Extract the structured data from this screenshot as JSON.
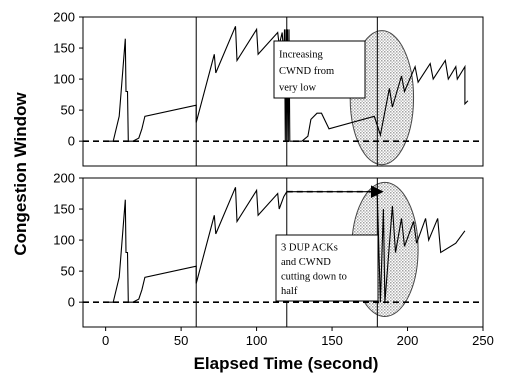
{
  "chart_data": {
    "type": "line",
    "xlabel": "Elapsed Time (second)",
    "ylabel": "Congestion Window",
    "xlim": [
      -15,
      250
    ],
    "xticks": [
      "0",
      "50",
      "100",
      "150",
      "200",
      "250"
    ],
    "xtick_values": [
      0,
      50,
      100,
      150,
      200,
      250
    ],
    "vertical_markers": [
      60,
      120,
      180
    ],
    "grid": false,
    "legend": "none",
    "panels": [
      {
        "ylim": [
          -40,
          200
        ],
        "yticks": [
          "0",
          "50",
          "100",
          "150",
          "200"
        ],
        "ytick_values": [
          0,
          50,
          100,
          150,
          200
        ],
        "baseline": 0,
        "series": [
          {
            "x": [
              0,
              5,
              9,
              13,
              13.5,
              14.5,
              15,
              17,
              17.5,
              18,
              22,
              24,
              26,
              60,
              60,
              72,
              73,
              86,
              87,
              100,
              101,
              114,
              115,
              117,
              118,
              118.5,
              119,
              119.5,
              120,
              120.5,
              121,
              121.5,
              122,
              130,
              134,
              136,
              140,
              143,
              148,
              178,
              182,
              188,
              190,
              196,
              198,
              205,
              207,
              215,
              217,
              225,
              227,
              232,
              233,
              238,
              238,
              240
            ],
            "y": [
              0,
              0,
              40,
              165,
              80,
              80,
              0,
              0,
              0,
              0,
              5,
              20,
              40,
              58,
              30,
              140,
              110,
              185,
              130,
              180,
              140,
              175,
              155,
              175,
              135,
              180,
              0,
              180,
              0,
              180,
              0,
              180,
              0,
              0,
              8,
              35,
              45,
              45,
              20,
              40,
              10,
              85,
              55,
              105,
              80,
              120,
              95,
              125,
              100,
              130,
              100,
              120,
              100,
              120,
              60,
              65
            ]
          }
        ],
        "annotations": [
          {
            "text": [
              "Increasing",
              "CWND from",
              "very low"
            ]
          }
        ],
        "ellipse": {
          "cx": 183,
          "cy": 70,
          "rx": 21,
          "ry": 108
        }
      },
      {
        "ylim": [
          -40,
          200
        ],
        "yticks": [
          "0",
          "50",
          "100",
          "150",
          "200"
        ],
        "ytick_values": [
          0,
          50,
          100,
          150,
          200
        ],
        "baseline": 0,
        "series": [
          {
            "x": [
              0,
              5,
              9,
              13,
              13.5,
              14.5,
              15,
              17,
              18,
              22,
              24,
              26,
              60,
              60,
              72,
              73,
              86,
              87,
              100,
              101,
              114,
              115,
              118,
              120,
              179,
              180,
              182,
              184,
              185,
              190,
              192,
              196,
              198,
              204,
              206,
              212,
              214,
              220,
              222,
              232,
              238
            ],
            "y": [
              0,
              0,
              40,
              165,
              80,
              80,
              0,
              0,
              0,
              5,
              20,
              40,
              58,
              30,
              140,
              110,
              185,
              130,
              180,
              140,
              175,
              150,
              170,
              178,
              178,
              170,
              0,
              150,
              0,
              155,
              80,
              135,
              90,
              130,
              95,
              135,
              100,
              135,
              80,
              95,
              115
            ]
          }
        ],
        "annotations": [
          {
            "text": [
              "3 DUP ACKs",
              "and CWND",
              "cutting down to",
              "half"
            ]
          }
        ],
        "arrow": {
          "from": [
            120,
            178
          ],
          "to": [
            182,
            178
          ]
        },
        "ellipse": {
          "cx": 185,
          "cy": 85,
          "rx": 22,
          "ry": 108
        }
      }
    ]
  }
}
